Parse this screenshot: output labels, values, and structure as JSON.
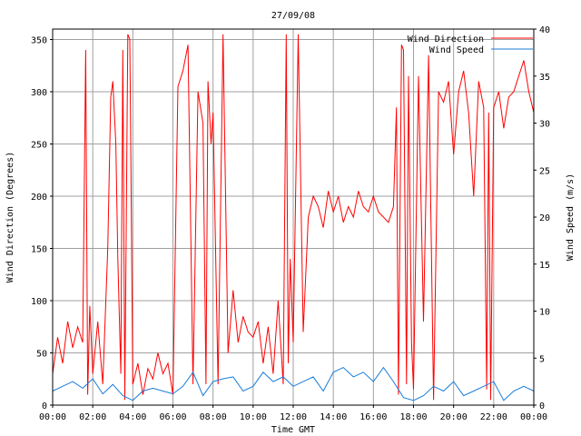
{
  "chart_data": {
    "type": "line",
    "title": "27/09/08",
    "xlabel": "Time GMT",
    "ylabel_left": "Wind Direction (Degrees)",
    "ylabel_right": "Wind Speed (m/s)",
    "xlim": [
      0,
      24
    ],
    "x_ticks": [
      "00:00",
      "02:00",
      "04:00",
      "06:00",
      "08:00",
      "10:00",
      "12:00",
      "14:00",
      "16:00",
      "18:00",
      "20:00",
      "22:00",
      "00:00"
    ],
    "ylim_left": [
      0,
      360
    ],
    "y_ticks_left": [
      "0",
      "50",
      "100",
      "150",
      "200",
      "250",
      "300",
      "350"
    ],
    "ylim_right": [
      0,
      40
    ],
    "y_ticks_right": [
      "0",
      "5",
      "10",
      "15",
      "20",
      "25",
      "30",
      "35",
      "40"
    ],
    "grid": true,
    "legend_position": "top-right",
    "series": [
      {
        "name": "Wind Direction",
        "axis": "left",
        "color": "#ff0000",
        "x": [
          0,
          0.25,
          0.5,
          0.75,
          1,
          1.25,
          1.5,
          1.65,
          1.75,
          1.85,
          2,
          2.25,
          2.5,
          2.75,
          2.9,
          3,
          3.15,
          3.25,
          3.4,
          3.5,
          3.6,
          3.75,
          3.85,
          4,
          4.25,
          4.5,
          4.75,
          5,
          5.25,
          5.5,
          5.75,
          6,
          6.25,
          6.5,
          6.75,
          7,
          7.25,
          7.5,
          7.65,
          7.75,
          7.9,
          8,
          8.25,
          8.5,
          8.75,
          9,
          9.25,
          9.5,
          9.75,
          10,
          10.25,
          10.5,
          10.75,
          11,
          11.25,
          11.5,
          11.65,
          11.75,
          11.85,
          12,
          12.25,
          12.5,
          12.75,
          13,
          13.25,
          13.5,
          13.75,
          14,
          14.25,
          14.5,
          14.75,
          15,
          15.25,
          15.5,
          15.75,
          16,
          16.25,
          16.5,
          16.75,
          17,
          17.15,
          17.25,
          17.4,
          17.5,
          17.65,
          17.75,
          17.9,
          18,
          18.25,
          18.5,
          18.75,
          19,
          19.25,
          19.5,
          19.75,
          20,
          20.25,
          20.5,
          20.75,
          21,
          21.25,
          21.5,
          21.65,
          21.75,
          21.85,
          22,
          22.25,
          22.5,
          22.75,
          23,
          23.25,
          23.5,
          23.75,
          24
        ],
        "y": [
          30,
          65,
          40,
          80,
          55,
          75,
          60,
          340,
          10,
          95,
          30,
          80,
          20,
          150,
          295,
          310,
          250,
          140,
          30,
          340,
          5,
          355,
          350,
          20,
          40,
          10,
          35,
          25,
          50,
          30,
          40,
          10,
          305,
          320,
          345,
          20,
          300,
          270,
          20,
          310,
          250,
          280,
          20,
          355,
          50,
          110,
          60,
          85,
          70,
          65,
          80,
          40,
          75,
          30,
          100,
          20,
          355,
          40,
          140,
          60,
          355,
          70,
          180,
          200,
          190,
          170,
          205,
          185,
          200,
          175,
          190,
          180,
          205,
          190,
          185,
          200,
          185,
          180,
          175,
          190,
          285,
          10,
          345,
          340,
          20,
          315,
          60,
          15,
          315,
          80,
          335,
          5,
          300,
          290,
          310,
          240,
          300,
          320,
          280,
          200,
          310,
          285,
          15,
          280,
          5,
          285,
          300,
          265,
          295,
          300,
          315,
          330,
          300,
          280
        ]
      },
      {
        "name": "Wind Speed",
        "axis": "right",
        "color": "#1a7dd7",
        "x": [
          0,
          0.5,
          1,
          1.5,
          2,
          2.5,
          3,
          3.5,
          4,
          4.5,
          5,
          5.5,
          6,
          6.5,
          7,
          7.5,
          8,
          8.5,
          9,
          9.5,
          10,
          10.5,
          11,
          11.5,
          12,
          12.5,
          13,
          13.5,
          14,
          14.5,
          15,
          15.5,
          16,
          16.5,
          17,
          17.5,
          18,
          18.5,
          19,
          19.5,
          20,
          20.5,
          21,
          21.5,
          22,
          22.5,
          23,
          23.5,
          24
        ],
        "y": [
          1.5,
          2.0,
          2.5,
          1.8,
          2.8,
          1.2,
          2.2,
          1.0,
          0.5,
          1.5,
          1.8,
          1.5,
          1.2,
          2.0,
          3.5,
          1.0,
          2.5,
          2.8,
          3.0,
          1.5,
          2.0,
          3.5,
          2.5,
          3.0,
          2.0,
          2.5,
          3.0,
          1.5,
          3.5,
          4.0,
          3.0,
          3.5,
          2.5,
          4.0,
          2.5,
          0.8,
          0.5,
          1.0,
          2.0,
          1.5,
          2.5,
          1.0,
          1.5,
          2.0,
          2.5,
          0.5,
          1.5,
          2.0,
          1.5
        ]
      }
    ]
  }
}
